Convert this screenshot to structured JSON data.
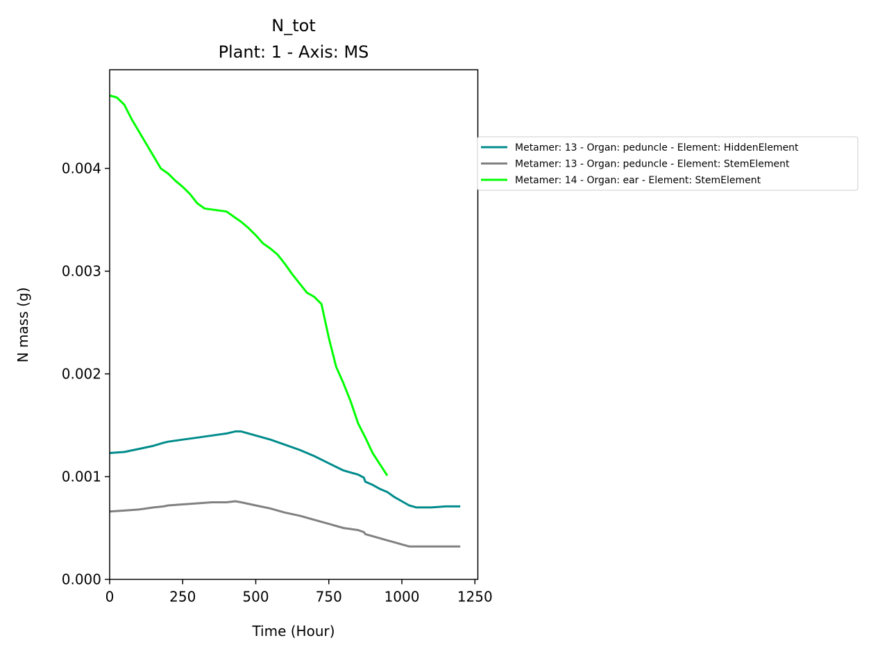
{
  "chart_data": {
    "type": "line",
    "title": "N_tot",
    "subtitle": "Plant: 1 - Axis: MS",
    "xlabel": "Time (Hour)",
    "ylabel": "N mass (g)",
    "xlim": [
      0,
      1260
    ],
    "ylim": [
      0,
      0.00496
    ],
    "xticks": [
      0,
      250,
      500,
      750,
      1000,
      1250
    ],
    "xtick_labels": [
      "0",
      "250",
      "500",
      "750",
      "1000",
      "1250"
    ],
    "yticks": [
      0,
      0.001,
      0.002,
      0.003,
      0.004
    ],
    "ytick_labels": [
      "0.000",
      "0.001",
      "0.002",
      "0.003",
      "0.004"
    ],
    "grid": false,
    "legend_position": "outside-right",
    "series": [
      {
        "name": "Metamer: 13 - Organ: peduncle - Element: HiddenElement",
        "color": "#008b8b",
        "x": [
          0,
          50,
          100,
          150,
          185,
          200,
          250,
          300,
          350,
          400,
          430,
          450,
          500,
          550,
          600,
          650,
          700,
          750,
          800,
          850,
          870,
          875,
          900,
          925,
          950,
          975,
          1000,
          1025,
          1050,
          1100,
          1150,
          1200
        ],
        "y": [
          0.00123,
          0.00124,
          0.00127,
          0.0013,
          0.00133,
          0.00134,
          0.00136,
          0.00138,
          0.0014,
          0.00142,
          0.00144,
          0.00144,
          0.0014,
          0.00136,
          0.00131,
          0.00126,
          0.0012,
          0.00113,
          0.00106,
          0.00102,
          0.00099,
          0.00095,
          0.00092,
          0.00088,
          0.00085,
          0.0008,
          0.00076,
          0.00072,
          0.0007,
          0.0007,
          0.00071,
          0.00071
        ]
      },
      {
        "name": "Metamer: 13 - Organ: peduncle - Element: StemElement",
        "color": "#808080",
        "x": [
          0,
          50,
          100,
          150,
          185,
          200,
          250,
          300,
          350,
          400,
          430,
          450,
          500,
          550,
          600,
          650,
          700,
          750,
          800,
          850,
          870,
          875,
          900,
          925,
          950,
          975,
          1000,
          1025,
          1050,
          1100,
          1150,
          1200
        ],
        "y": [
          0.00066,
          0.00067,
          0.00068,
          0.0007,
          0.00071,
          0.00072,
          0.00073,
          0.00074,
          0.00075,
          0.00075,
          0.00076,
          0.00075,
          0.00072,
          0.00069,
          0.00065,
          0.00062,
          0.00058,
          0.00054,
          0.0005,
          0.00048,
          0.00046,
          0.00044,
          0.00042,
          0.0004,
          0.00038,
          0.00036,
          0.00034,
          0.00032,
          0.00032,
          0.00032,
          0.00032,
          0.00032
        ]
      },
      {
        "name": "Metamer: 14 - Organ: ear - Element: StemElement",
        "color": "#00ff00",
        "x": [
          0,
          25,
          50,
          75,
          100,
          125,
          150,
          175,
          200,
          225,
          250,
          275,
          300,
          325,
          350,
          375,
          400,
          425,
          450,
          475,
          500,
          525,
          550,
          575,
          600,
          625,
          650,
          675,
          700,
          725,
          750,
          775,
          800,
          825,
          850,
          875,
          900,
          925,
          950
        ],
        "y": [
          0.00471,
          0.00469,
          0.00462,
          0.00448,
          0.00436,
          0.00424,
          0.00412,
          0.004,
          0.00395,
          0.00388,
          0.00382,
          0.00375,
          0.00366,
          0.00361,
          0.0036,
          0.00359,
          0.00358,
          0.00353,
          0.00348,
          0.00342,
          0.00335,
          0.00327,
          0.00322,
          0.00316,
          0.00307,
          0.00297,
          0.00288,
          0.00279,
          0.00275,
          0.00268,
          0.00235,
          0.00207,
          0.00191,
          0.00173,
          0.00152,
          0.00138,
          0.00123,
          0.00112,
          0.00101
        ]
      }
    ]
  }
}
